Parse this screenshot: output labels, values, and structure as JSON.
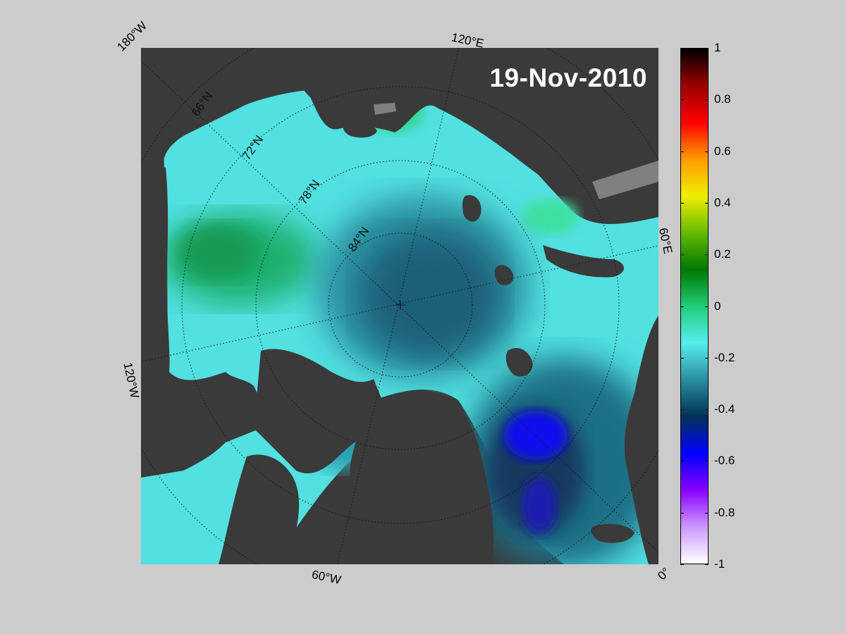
{
  "date_label": "19-Nov-2010",
  "map_labels": {
    "lon_180w": "180°W",
    "lon_120e": "120°E",
    "lon_60e": "60°E",
    "lon_120w": "120°W",
    "lon_60w": "60°W",
    "lon_0": "0°",
    "lat_66n": "66°N",
    "lat_72n": "72°N",
    "lat_78n": "78°N",
    "lat_84n": "84°N"
  },
  "colorbar": {
    "range": [
      -1,
      1
    ],
    "ticks": [
      "1",
      "0.8",
      "0.6",
      "0.4",
      "0.2",
      "0",
      "-0.2",
      "-0.4",
      "-0.6",
      "-0.8",
      "-1"
    ],
    "tick_values": [
      1,
      0.8,
      0.6,
      0.4,
      0.2,
      0,
      -0.2,
      -0.4,
      -0.6,
      -0.8,
      -1
    ],
    "colors": [
      "#ffffff",
      "#cc99ff",
      "#8800ff",
      "#0000ff",
      "#003355",
      "#2a8fa0",
      "#55eeee",
      "#22cc77",
      "#007700",
      "#66bb00",
      "#eeee00",
      "#ff9900",
      "#ff0000",
      "#990000",
      "#000000"
    ]
  },
  "colors": {
    "background": "#cccccc",
    "land": "#3a3a3a",
    "missing": "#808080"
  }
}
